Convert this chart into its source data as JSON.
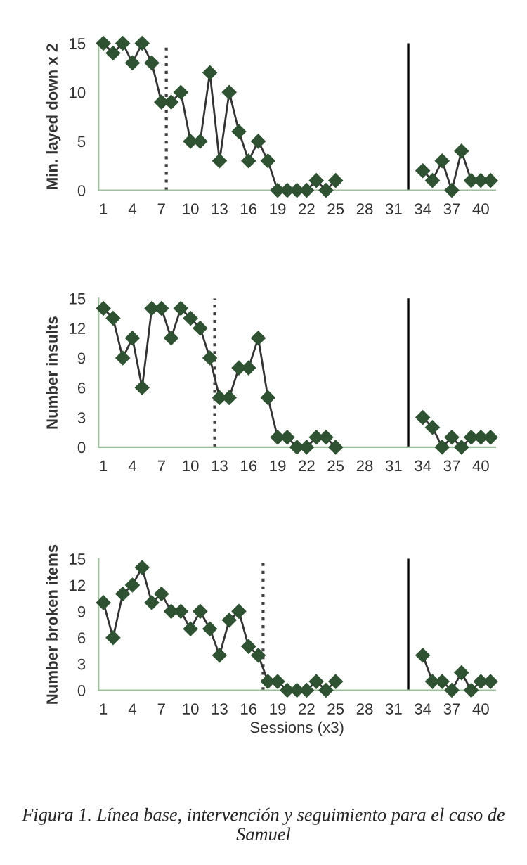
{
  "chart_data": [
    {
      "type": "line",
      "ylabel": "Min. layed down x 2",
      "x": [
        1,
        2,
        3,
        4,
        5,
        6,
        7,
        8,
        9,
        10,
        11,
        12,
        13,
        14,
        15,
        16,
        17,
        18,
        19,
        20,
        21,
        22,
        23,
        24,
        25,
        26,
        27,
        28,
        29,
        30,
        31,
        32,
        33,
        34,
        35,
        36,
        37,
        38,
        39,
        40,
        41
      ],
      "series": [
        {
          "color": "#2f5233",
          "values": [
            15,
            14,
            15,
            13,
            15,
            13,
            9,
            9,
            10,
            5,
            5,
            12,
            3,
            10,
            6,
            3,
            5,
            3,
            0,
            0,
            0,
            0,
            1,
            0,
            1,
            null,
            null,
            null,
            null,
            null,
            null,
            null,
            null,
            2,
            1,
            3,
            0,
            4,
            1,
            1,
            1
          ]
        }
      ],
      "xlim": [
        0.5,
        41.5
      ],
      "xticks": [
        1,
        4,
        7,
        10,
        13,
        16,
        19,
        22,
        25,
        28,
        31,
        34,
        37,
        40
      ],
      "ylim": [
        0,
        15
      ],
      "yticks": [
        0,
        5,
        10,
        15
      ],
      "marker": "diamond",
      "grid": false,
      "legend": false,
      "ref_lines": [
        {
          "axis": "x",
          "value": 7.5,
          "line_style": "dotted",
          "color": "#404040"
        },
        {
          "axis": "x",
          "value": 32.5,
          "line_style": "solid",
          "color": "#000000"
        }
      ]
    },
    {
      "type": "line",
      "ylabel": "Number insults",
      "x": [
        1,
        2,
        3,
        4,
        5,
        6,
        7,
        8,
        9,
        10,
        11,
        12,
        13,
        14,
        15,
        16,
        17,
        18,
        19,
        20,
        21,
        22,
        23,
        24,
        25,
        26,
        27,
        28,
        29,
        30,
        31,
        32,
        33,
        34,
        35,
        36,
        37,
        38,
        39,
        40,
        41
      ],
      "series": [
        {
          "color": "#2f5233",
          "values": [
            14,
            13,
            9,
            11,
            6,
            14,
            14,
            11,
            14,
            13,
            12,
            9,
            5,
            5,
            8,
            8,
            11,
            5,
            1,
            1,
            0,
            0,
            1,
            1,
            0,
            null,
            null,
            null,
            null,
            null,
            null,
            null,
            null,
            3,
            2,
            0,
            1,
            0,
            1,
            1,
            1
          ]
        }
      ],
      "xlim": [
        0.5,
        41.5
      ],
      "xticks": [
        1,
        4,
        7,
        10,
        13,
        16,
        19,
        22,
        25,
        28,
        31,
        34,
        37,
        40
      ],
      "ylim": [
        0,
        15
      ],
      "yticks": [
        0,
        3,
        6,
        9,
        12,
        15
      ],
      "marker": "diamond",
      "grid": false,
      "legend": false,
      "ref_lines": [
        {
          "axis": "x",
          "value": 12.5,
          "line_style": "dotted",
          "color": "#404040"
        },
        {
          "axis": "x",
          "value": 32.5,
          "line_style": "solid",
          "color": "#000000"
        }
      ]
    },
    {
      "type": "line",
      "ylabel": "Number broken items",
      "xlabel": "Sessions (x3)",
      "x": [
        1,
        2,
        3,
        4,
        5,
        6,
        7,
        8,
        9,
        10,
        11,
        12,
        13,
        14,
        15,
        16,
        17,
        18,
        19,
        20,
        21,
        22,
        23,
        24,
        25,
        26,
        27,
        28,
        29,
        30,
        31,
        32,
        33,
        34,
        35,
        36,
        37,
        38,
        39,
        40,
        41
      ],
      "series": [
        {
          "color": "#2f5233",
          "values": [
            10,
            6,
            11,
            12,
            14,
            10,
            11,
            9,
            9,
            7,
            9,
            7,
            4,
            8,
            9,
            5,
            4,
            1,
            1,
            0,
            0,
            0,
            1,
            0,
            1,
            null,
            null,
            null,
            null,
            null,
            null,
            null,
            null,
            4,
            1,
            1,
            0,
            2,
            0,
            1,
            1
          ]
        }
      ],
      "xlim": [
        0.5,
        41.5
      ],
      "xticks": [
        1,
        4,
        7,
        10,
        13,
        16,
        19,
        22,
        25,
        28,
        31,
        34,
        37,
        40
      ],
      "ylim": [
        0,
        15
      ],
      "yticks": [
        0,
        3,
        6,
        9,
        12,
        15
      ],
      "marker": "diamond",
      "grid": false,
      "legend": false,
      "ref_lines": [
        {
          "axis": "x",
          "value": 17.5,
          "line_style": "dotted",
          "color": "#404040"
        },
        {
          "axis": "x",
          "value": 32.5,
          "line_style": "solid",
          "color": "#000000"
        }
      ],
      "annotations": [
        "Figura 1. Línea base, intervención y seguimiento para el caso de Samuel"
      ]
    }
  ]
}
